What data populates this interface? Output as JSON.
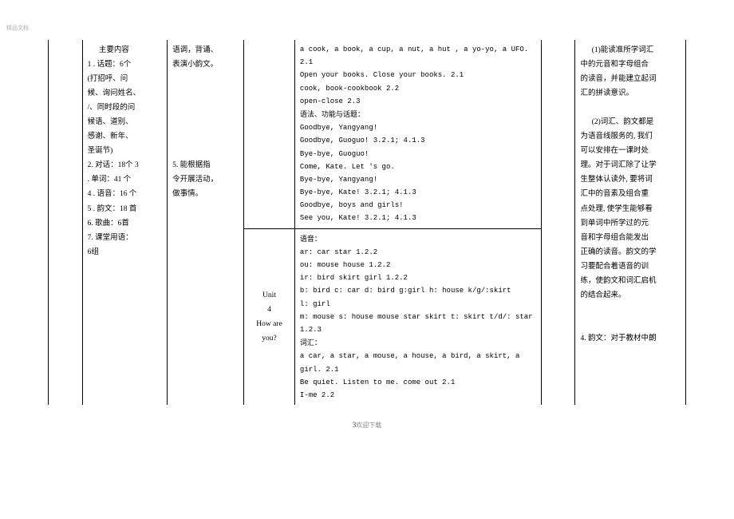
{
  "watermark": "精品文档",
  "col2": {
    "title": "主要内容",
    "lines": [
      "1 . 话题：6个",
      "(打招呼、问",
      "候、询问姓名、",
      "/、同时段的问",
      "候语、道别、",
      "感谢、新年、",
      "圣诞节)",
      "2. 对话：18个 3",
      ". 单词：41 个",
      "4 . 语音：16 个",
      "5 . 韵文：18 首",
      "6. 歌曲：6首",
      "7. 课堂用语：",
      "6组"
    ]
  },
  "col3": {
    "p1": [
      "语调，背诵、",
      "表演小韵文。"
    ],
    "p2": [
      "5. 能根据指",
      "令开展活动，",
      "做事情。"
    ]
  },
  "unit4": {
    "l1": "Unit",
    "l2": "4",
    "l3": "How are",
    "l4": "you?"
  },
  "topCell": {
    "lines": [
      "a cook, a book, a cup, a nut, a hut , a yo-yo, a UFO. 2.1",
      "Open your books. Close your books. 2.1",
      "cook, book-cookbook 2.2",
      "open-close 2.3"
    ],
    "grammarTitle": "语法、功能与话题：",
    "dialog": [
      "Goodbye, Yangyang!",
      "Goodbye, Guoguo!            3.2.1; 4.1.3",
      "Bye-bye, Guoguo!",
      "Come, Kate. Let 's go.",
      "Bye-bye, Yangyang!",
      "Bye-bye, Kate!             3.2.1; 4.1.3",
      "Goodbye, boys and girls!",
      "See you, Kate!            3.2.1; 4.1.3"
    ]
  },
  "bottomCell": {
    "soundTitle": "语音：",
    "sounds": [
      "ar: car star                  1.2.2",
      "ou: mouse house                  1.2.2",
      "ir: bird skirt girl             1.2.2",
      "b: bird c: car d: bird g:girl h: house k/g/:skirt",
      "l: girl",
      "m: mouse s: house mouse star skirt t: skirt t/d/: star 1.2.3"
    ],
    "vocabTitle": "词汇：",
    "vocab": [
      "a car, a star, a mouse, a house, a bird, a skirt, a girl. 2.1",
      "Be quiet. Listen to me. come out 2.1",
      "I-me                  2.2"
    ]
  },
  "col7": {
    "para1": [
      "(1)能读准所学词汇",
      "中的元音和字母组合",
      "的读音，并能建立起词",
      "汇的拼读意识。"
    ],
    "para2": [
      "(2)词汇、韵文都是",
      "为语音线服务的, 我们",
      "可以安排在一课时处",
      "理。对于词汇除了让学",
      "生整体认读外, 要将词",
      "汇中的音素及组合重",
      "点处理, 使学生能够看",
      "到单词中所学过的元",
      "音和字母组合能发出",
      "正确的读音。韵文的学",
      "习要配合着语音的训",
      "练，使韵文和词汇启机",
      "的结合起来。"
    ],
    "para3": "4. 韵文：对于教材中朗"
  },
  "footer": {
    "page": "3",
    "note": "欢迎下载"
  }
}
